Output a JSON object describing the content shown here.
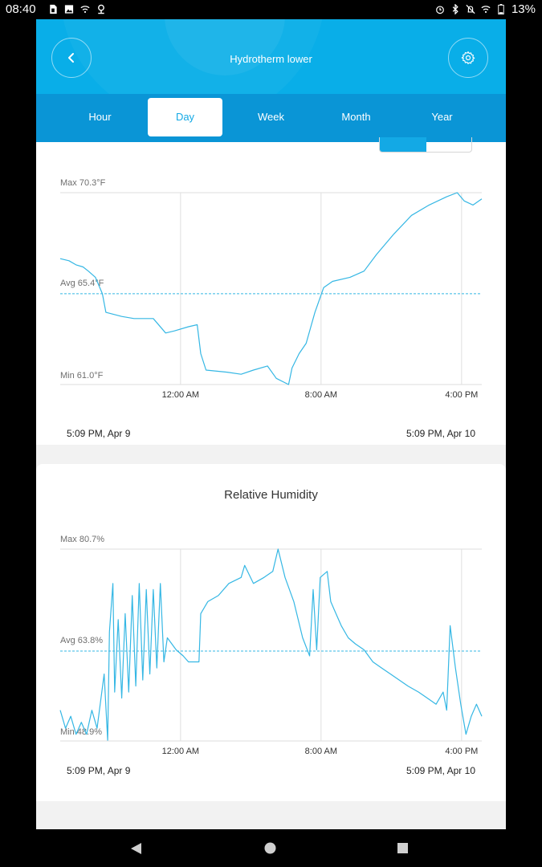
{
  "status_bar": {
    "time": "08:40",
    "left_icons": [
      "sim-icon",
      "image-icon",
      "wifi-off-icon",
      "location-icon"
    ],
    "right_icons": [
      "alarm-icon",
      "bluetooth-icon",
      "mute-icon",
      "wifi-icon",
      "battery-icon"
    ],
    "battery": "13%"
  },
  "header": {
    "title": "Hydrotherm lower",
    "back_icon": "chevron-left-icon",
    "settings_icon": "gear-icon"
  },
  "tabs": [
    {
      "label": "Hour"
    },
    {
      "label": "Day",
      "active": true
    },
    {
      "label": "Week"
    },
    {
      "label": "Month"
    },
    {
      "label": "Year"
    }
  ],
  "colors": {
    "accent": "#13a9e5",
    "header": "#09aee8",
    "tabbar": "#0a95d6",
    "series": "#35b7e4"
  },
  "chart_data": [
    {
      "type": "line",
      "title": "",
      "max_label": "Max 70.3°F",
      "avg_label": "Avg 65.4°F",
      "min_label": "Min 61.0°F",
      "y_max": 70.3,
      "y_avg": 65.4,
      "y_min": 61.0,
      "x_start_hours": 0,
      "x_end_hours": 24,
      "x_ticks": [
        {
          "label": "12:00 AM",
          "hours": 6.85
        },
        {
          "label": "8:00 AM",
          "hours": 14.85
        },
        {
          "label": "4:00 PM",
          "hours": 22.85
        }
      ],
      "start_label": "5:09 PM,  Apr 9",
      "end_label": "5:09 PM,  Apr 10",
      "series": [
        {
          "values": [
            [
              0,
              67.1
            ],
            [
              0.5,
              67.0
            ],
            [
              0.9,
              66.8
            ],
            [
              1.3,
              66.7
            ],
            [
              1.6,
              66.5
            ],
            [
              2.0,
              66.2
            ],
            [
              2.4,
              65.4
            ],
            [
              2.6,
              64.5
            ],
            [
              3.5,
              64.3
            ],
            [
              4.2,
              64.2
            ],
            [
              5.3,
              64.2
            ],
            [
              6.0,
              63.5
            ],
            [
              6.5,
              63.6
            ],
            [
              7.3,
              63.8
            ],
            [
              7.8,
              63.9
            ],
            [
              8.0,
              62.5
            ],
            [
              8.3,
              61.7
            ],
            [
              9.5,
              61.6
            ],
            [
              10.3,
              61.5
            ],
            [
              11.0,
              61.7
            ],
            [
              11.8,
              61.9
            ],
            [
              12.3,
              61.3
            ],
            [
              13.0,
              61.0
            ],
            [
              13.2,
              61.8
            ],
            [
              13.6,
              62.5
            ],
            [
              14.0,
              63.0
            ],
            [
              14.5,
              64.5
            ],
            [
              15.0,
              65.7
            ],
            [
              15.5,
              66.0
            ],
            [
              16.5,
              66.2
            ],
            [
              17.3,
              66.5
            ],
            [
              18.0,
              67.3
            ],
            [
              19.0,
              68.3
            ],
            [
              20.0,
              69.2
            ],
            [
              21.0,
              69.7
            ],
            [
              22.0,
              70.1
            ],
            [
              22.6,
              70.3
            ],
            [
              23.0,
              69.9
            ],
            [
              23.5,
              69.7
            ],
            [
              24.0,
              70.0
            ]
          ]
        }
      ]
    },
    {
      "type": "line",
      "title": "Relative Humidity",
      "max_label": "Max 80.7%",
      "avg_label": "Avg 63.8%",
      "min_label": "Min 48.9%",
      "y_max": 80.7,
      "y_avg": 63.8,
      "y_min": 48.9,
      "x_start_hours": 0,
      "x_end_hours": 24,
      "x_ticks": [
        {
          "label": "12:00 AM",
          "hours": 6.85
        },
        {
          "label": "8:00 AM",
          "hours": 14.85
        },
        {
          "label": "4:00 PM",
          "hours": 22.85
        }
      ],
      "start_label": "5:09 PM,  Apr 9",
      "end_label": "5:09 PM,  Apr 10",
      "series": [
        {
          "values": [
            [
              0,
              54
            ],
            [
              0.3,
              51
            ],
            [
              0.6,
              53
            ],
            [
              0.9,
              50
            ],
            [
              1.2,
              52
            ],
            [
              1.5,
              50
            ],
            [
              1.8,
              54
            ],
            [
              2.1,
              51
            ],
            [
              2.5,
              60
            ],
            [
              2.7,
              49
            ],
            [
              2.8,
              67
            ],
            [
              3.0,
              75
            ],
            [
              3.1,
              57
            ],
            [
              3.3,
              69
            ],
            [
              3.5,
              56
            ],
            [
              3.7,
              70
            ],
            [
              3.9,
              57
            ],
            [
              4.1,
              73
            ],
            [
              4.3,
              58
            ],
            [
              4.5,
              75
            ],
            [
              4.7,
              59
            ],
            [
              4.9,
              74
            ],
            [
              5.1,
              60
            ],
            [
              5.3,
              74
            ],
            [
              5.5,
              61
            ],
            [
              5.7,
              75
            ],
            [
              5.9,
              62
            ],
            [
              6.1,
              66
            ],
            [
              6.6,
              64
            ],
            [
              7.0,
              63
            ],
            [
              7.3,
              62
            ],
            [
              7.9,
              62
            ],
            [
              8.0,
              70
            ],
            [
              8.4,
              72
            ],
            [
              9.0,
              73
            ],
            [
              9.6,
              75
            ],
            [
              10.3,
              76
            ],
            [
              10.5,
              78
            ],
            [
              11.0,
              75
            ],
            [
              11.6,
              76
            ],
            [
              12.1,
              77
            ],
            [
              12.4,
              80.7
            ],
            [
              12.8,
              76
            ],
            [
              13.3,
              72
            ],
            [
              13.8,
              66
            ],
            [
              14.2,
              63
            ],
            [
              14.4,
              74
            ],
            [
              14.6,
              64
            ],
            [
              14.8,
              76
            ],
            [
              15.2,
              77
            ],
            [
              15.4,
              72
            ],
            [
              15.7,
              70
            ],
            [
              16.0,
              68
            ],
            [
              16.4,
              66
            ],
            [
              16.8,
              65
            ],
            [
              17.3,
              64
            ],
            [
              17.8,
              62
            ],
            [
              18.3,
              61
            ],
            [
              18.8,
              60
            ],
            [
              19.3,
              59
            ],
            [
              19.8,
              58
            ],
            [
              20.4,
              57
            ],
            [
              20.9,
              56
            ],
            [
              21.4,
              55
            ],
            [
              21.8,
              57
            ],
            [
              22.0,
              54
            ],
            [
              22.2,
              68
            ],
            [
              22.5,
              61
            ],
            [
              22.8,
              55
            ],
            [
              23.1,
              50
            ],
            [
              23.4,
              53
            ],
            [
              23.7,
              55
            ],
            [
              24.0,
              53
            ]
          ]
        }
      ]
    }
  ]
}
